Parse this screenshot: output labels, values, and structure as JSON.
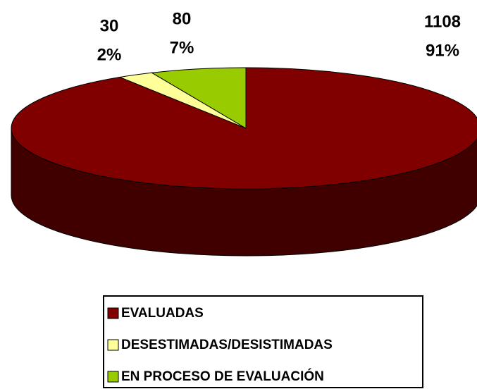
{
  "chart_data": {
    "type": "pie3d",
    "categories": [
      "EVALUADAS",
      "DESESTIMADAS/DESISTIMADAS",
      "EN PROCESO DE EVALUACIÓN"
    ],
    "values": [
      1108,
      30,
      80
    ],
    "percent_labels": [
      "91%",
      "2%",
      "7%"
    ],
    "colors": [
      "#800000",
      "#ffff99",
      "#99cc00"
    ],
    "legend": "bottom"
  }
}
